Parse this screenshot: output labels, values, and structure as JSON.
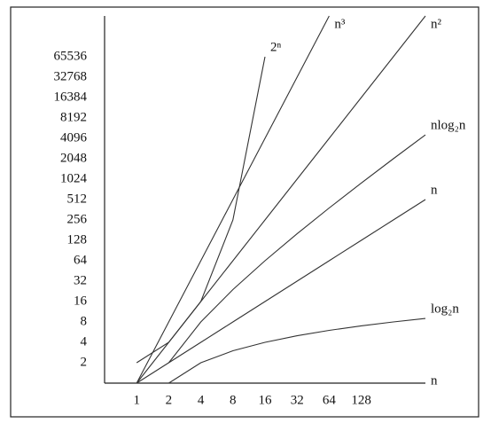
{
  "chart_data": {
    "type": "line",
    "x_label": "n",
    "log_base": 2,
    "grid": false,
    "xlim": [
      0.5,
      512
    ],
    "ylim": [
      1,
      262144
    ],
    "xticks": [
      1,
      2,
      4,
      8,
      16,
      32,
      64,
      128
    ],
    "yticks": [
      2,
      4,
      8,
      16,
      32,
      64,
      128,
      256,
      512,
      1024,
      2048,
      4096,
      8192,
      16384,
      32768,
      65536
    ],
    "series": [
      {
        "name": "2ⁿ",
        "color": "#333333",
        "x": [
          1,
          2,
          4,
          8,
          16
        ],
        "values": [
          2,
          4,
          16,
          256,
          65536
        ]
      },
      {
        "name": "n³",
        "color": "#333333",
        "x": [
          1,
          2,
          4,
          8,
          16,
          32,
          64
        ],
        "values": [
          1,
          8,
          64,
          512,
          4096,
          32768,
          262144
        ]
      },
      {
        "name": "n²",
        "color": "#333333",
        "x": [
          1,
          2,
          4,
          8,
          16,
          32,
          64,
          128,
          256,
          512
        ],
        "values": [
          1,
          4,
          16,
          64,
          256,
          1024,
          4096,
          16384,
          65536,
          262144
        ]
      },
      {
        "name": "nlog₂n",
        "color": "#333333",
        "x": [
          2,
          4,
          8,
          16,
          32,
          64,
          128,
          256,
          512
        ],
        "values": [
          2,
          8,
          24,
          64,
          160,
          384,
          896,
          2048,
          4608
        ]
      },
      {
        "name": "n",
        "color": "#333333",
        "x": [
          1,
          2,
          4,
          8,
          16,
          32,
          64,
          128,
          256,
          512
        ],
        "values": [
          1,
          2,
          4,
          8,
          16,
          32,
          64,
          128,
          256,
          512
        ]
      },
      {
        "name": "log₂n",
        "color": "#333333",
        "x": [
          2,
          4,
          8,
          16,
          32,
          64,
          128,
          256,
          512
        ],
        "values": [
          1,
          2,
          3,
          4,
          5,
          6,
          7,
          8,
          9
        ]
      }
    ]
  }
}
